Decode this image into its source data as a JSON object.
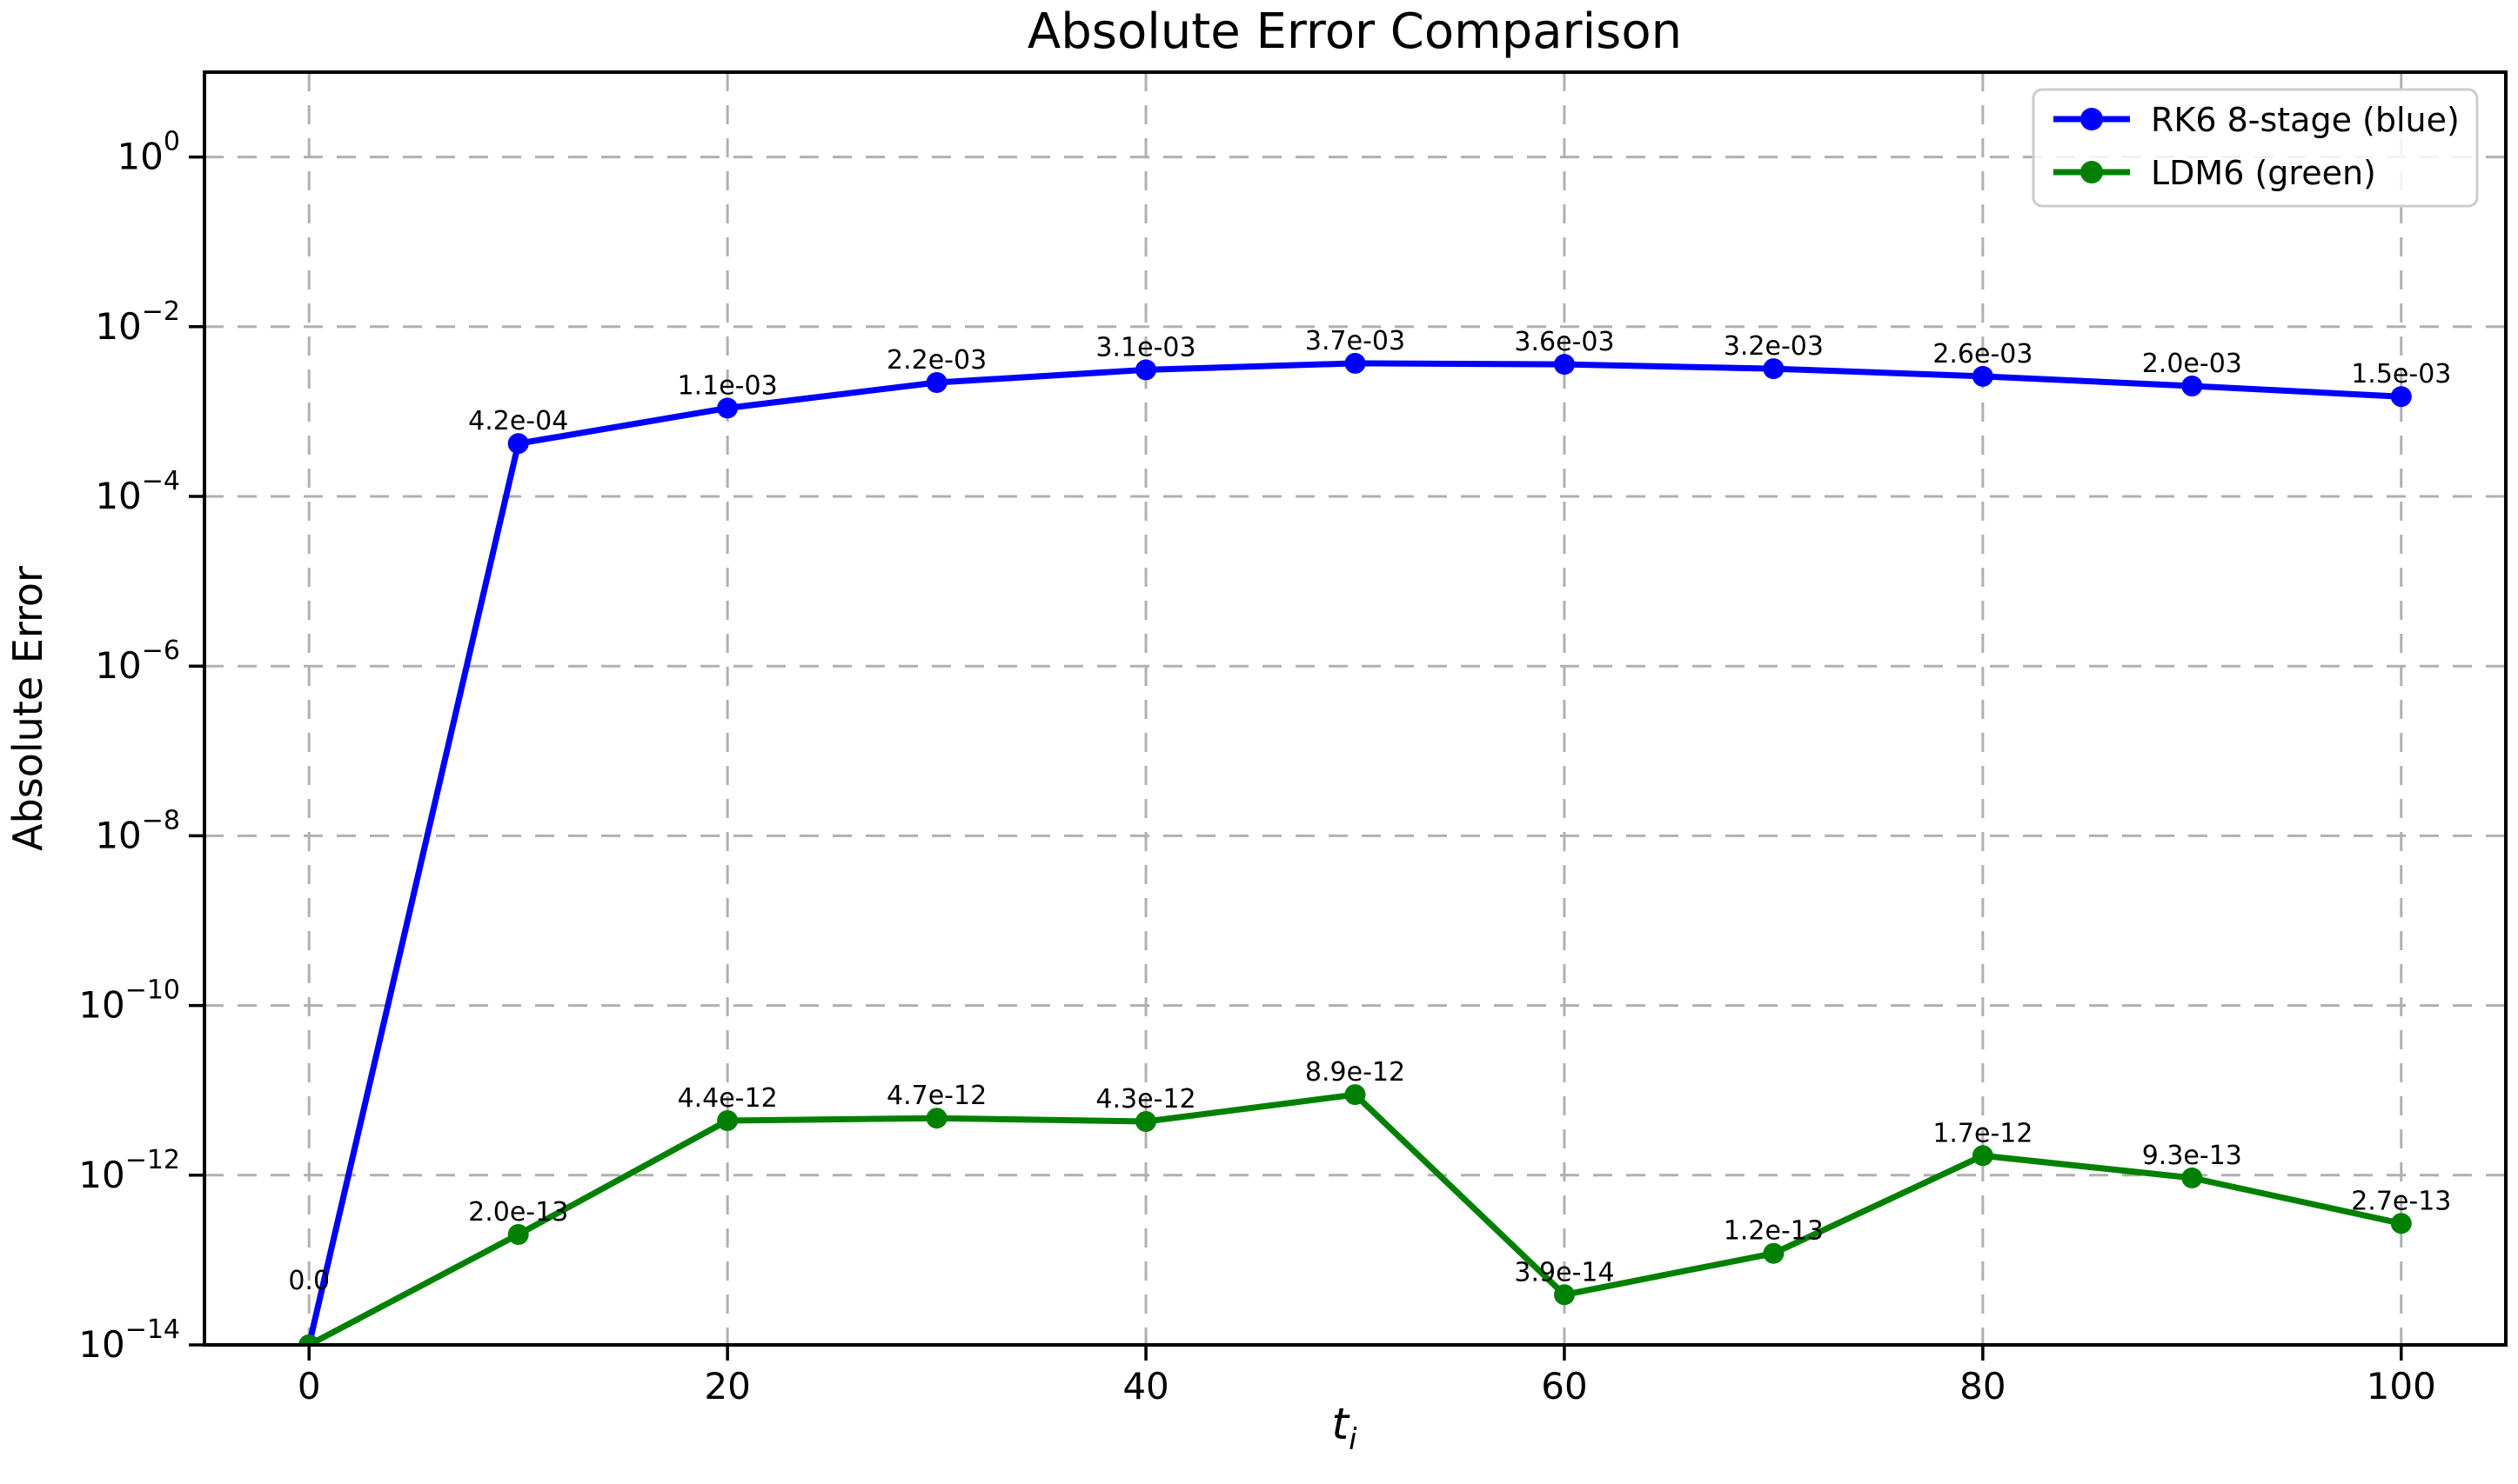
{
  "title": "Absolute Error Comparison",
  "ylabel": "Absolute Error",
  "xlabel": {
    "main": "t",
    "sub": "i"
  },
  "legend": [
    {
      "label": "RK6 8-stage (blue)",
      "color": "#0000ff"
    },
    {
      "label": "LDM6 (green)",
      "color": "#008000"
    }
  ],
  "chart_data": {
    "type": "line",
    "title": "Absolute Error Comparison",
    "xlabel": "t_i",
    "ylabel": "Absolute Error",
    "x": [
      0,
      10,
      20,
      30,
      40,
      50,
      60,
      70,
      80,
      90,
      100
    ],
    "xticks": [
      0,
      20,
      40,
      60,
      80,
      100
    ],
    "ytick_exponents": [
      0,
      -2,
      -4,
      -6,
      -8,
      -10,
      -12,
      -14
    ],
    "xlim": [
      -5,
      105
    ],
    "ylim": [
      1e-14,
      10
    ],
    "yscale": "log",
    "grid": true,
    "legend_position": "upper right",
    "series": [
      {
        "name": "RK6 8-stage (blue)",
        "color": "#0000ff",
        "values": [
          1e-14,
          0.00042,
          0.0011,
          0.0022,
          0.0031,
          0.0037,
          0.0036,
          0.0032,
          0.0026,
          0.002,
          0.0015
        ],
        "point_labels": [
          "",
          "4.2e-04",
          "1.1e-03",
          "2.2e-03",
          "3.1e-03",
          "3.7e-03",
          "3.6e-03",
          "3.2e-03",
          "2.6e-03",
          "2.0e-03",
          "1.5e-03"
        ]
      },
      {
        "name": "LDM6 (green)",
        "color": "#008000",
        "values": [
          1e-14,
          2e-13,
          4.4e-12,
          4.7e-12,
          4.3e-12,
          8.9e-12,
          3.9e-14,
          1.2e-13,
          1.7e-12,
          9.3e-13,
          2.7e-13
        ],
        "point_labels": [
          "0.0",
          "2.0e-13",
          "4.4e-12",
          "4.7e-12",
          "4.3e-12",
          "8.9e-12",
          "3.9e-14",
          "1.2e-13",
          "1.7e-12",
          "9.3e-13",
          "2.7e-13"
        ]
      }
    ]
  }
}
